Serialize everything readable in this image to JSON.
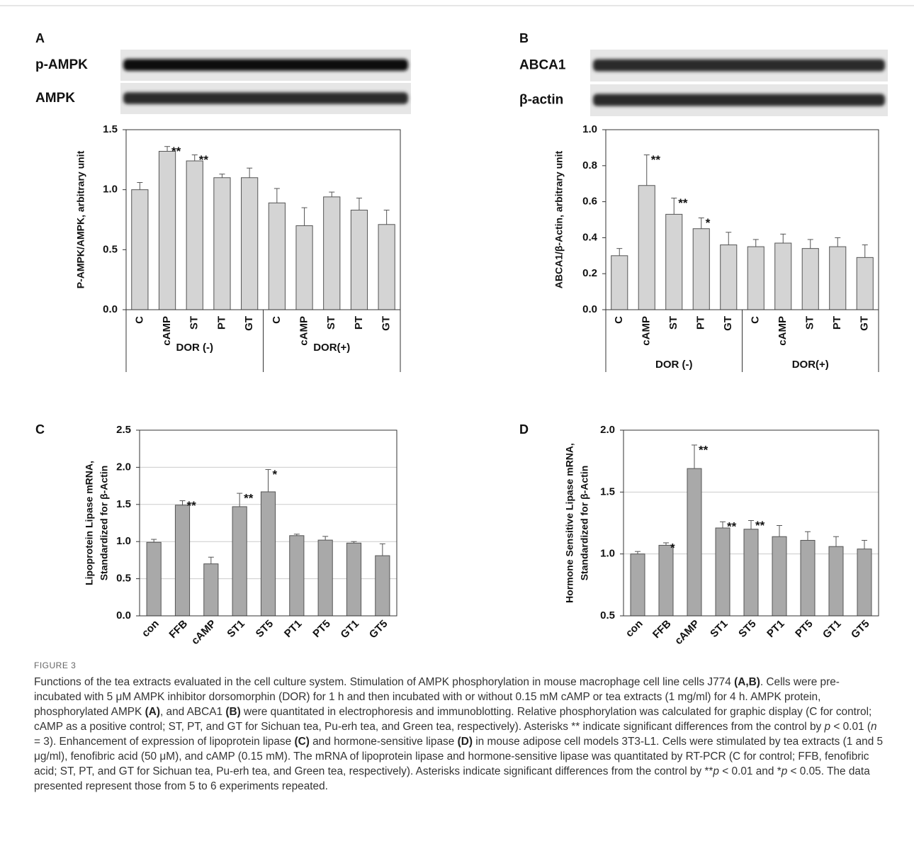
{
  "figure_label": "FIGURE 3",
  "caption": {
    "runs": [
      {
        "text": "Functions of the tea extracts evaluated in the cell culture system. Stimulation of AMPK phosphorylation in mouse macrophage cell line cells J774 "
      },
      {
        "text": "(A,B)",
        "bold": true
      },
      {
        "text": ". Cells were pre-incubated with 5 μM AMPK inhibitor dorsomorphin (DOR) for 1 h and then incubated with or without 0.15 mM cAMP or tea extracts (1 mg/ml) for 4 h. AMPK protein, phosphorylated AMPK "
      },
      {
        "text": "(A)",
        "bold": true
      },
      {
        "text": ", and ABCA1 "
      },
      {
        "text": "(B)",
        "bold": true
      },
      {
        "text": " were quantitated in electrophoresis and immunoblotting. Relative phosphorylation was calculated for graphic display (C for control; cAMP as a positive control; ST, PT, and GT for Sichuan tea, Pu-erh tea, and Green tea, respectively). Asterisks ** indicate significant differences from the control by "
      },
      {
        "text": "p",
        "italic": true
      },
      {
        "text": " < 0.01 ("
      },
      {
        "text": "n",
        "italic": true
      },
      {
        "text": " = 3). Enhancement of expression of lipoprotein lipase "
      },
      {
        "text": "(C)",
        "bold": true
      },
      {
        "text": " and hormone-sensitive lipase "
      },
      {
        "text": "(D)",
        "bold": true
      },
      {
        "text": " in mouse adipose cell models 3T3-L1. Cells were stimulated by tea extracts (1 and 5 μg/ml), fenofibric acid (50 μM), and cAMP (0.15 mM). The mRNA of lipoprotein lipase and hormone-sensitive lipase was quantitated by RT-PCR (C for control; FFB, fenofibric acid; ST, PT, and GT for Sichuan tea, Pu-erh tea, and Green tea, respectively). Asterisks indicate significant differences from the control by **"
      },
      {
        "text": "p",
        "italic": true
      },
      {
        "text": " < 0.01 and *"
      },
      {
        "text": "p",
        "italic": true
      },
      {
        "text": " < 0.05. The data presented represent those from 5 to 6 experiments repeated."
      }
    ]
  },
  "chart_data": [
    {
      "type": "bar",
      "panel": "A",
      "blots": [
        "p-AMPK",
        "AMPK"
      ],
      "ylabel": [
        "P-AMPK/AMPK, arbitrary unit"
      ],
      "categories": [
        "C",
        "cAMP",
        "ST",
        "PT",
        "GT",
        "C",
        "cAMP",
        "ST",
        "PT",
        "GT"
      ],
      "groups": [
        "DOR (-)",
        "DOR(+)"
      ],
      "values": [
        1.0,
        1.32,
        1.24,
        1.1,
        1.1,
        0.89,
        0.7,
        0.94,
        0.83,
        0.71
      ],
      "errors": [
        0.06,
        0.04,
        0.05,
        0.03,
        0.08,
        0.12,
        0.15,
        0.04,
        0.1,
        0.12
      ],
      "significance": [
        null,
        "**",
        "**",
        null,
        null,
        null,
        null,
        null,
        null,
        null
      ],
      "color": "#d4d4d4",
      "grid": false,
      "xtick_rotation": 90,
      "ylim": [
        0,
        1.5
      ],
      "yticks": [
        {
          "value": 0,
          "label": "0.0"
        },
        {
          "value": 0.5,
          "label": "0.5"
        },
        {
          "value": 1,
          "label": "1.0"
        },
        {
          "value": 1.5,
          "label": "1.5"
        }
      ]
    },
    {
      "type": "bar",
      "panel": "B",
      "blots": [
        "ABCA1",
        "β-actin"
      ],
      "ylabel": [
        "ABCA1/β-Actin, arbitrary unit"
      ],
      "categories": [
        "C",
        "cAMP",
        "ST",
        "PT",
        "GT",
        "C",
        "cAMP",
        "ST",
        "PT",
        "GT"
      ],
      "groups": [
        "DOR (-)",
        "DOR(+)"
      ],
      "values": [
        0.3,
        0.69,
        0.53,
        0.45,
        0.36,
        0.35,
        0.37,
        0.34,
        0.35,
        0.29
      ],
      "errors": [
        0.04,
        0.17,
        0.09,
        0.06,
        0.07,
        0.04,
        0.05,
        0.05,
        0.05,
        0.07
      ],
      "significance": [
        null,
        "**",
        "**",
        "*",
        null,
        null,
        null,
        null,
        null,
        null
      ],
      "color": "#d4d4d4",
      "grid": false,
      "xtick_rotation": 90,
      "ylim": [
        0,
        1.0
      ],
      "yticks": [
        {
          "value": 0,
          "label": "0.0"
        },
        {
          "value": 0.2,
          "label": "0.2"
        },
        {
          "value": 0.4,
          "label": "0.4"
        },
        {
          "value": 0.6,
          "label": "0.6"
        },
        {
          "value": 0.8,
          "label": "0.8"
        },
        {
          "value": 1,
          "label": "1.0"
        }
      ]
    },
    {
      "type": "bar",
      "panel": "C",
      "ylabel": [
        "Lipoprotein Lipase mRNA,",
        "Standardized for β-Actin"
      ],
      "categories": [
        "con",
        "FFB",
        "cAMP",
        "ST1",
        "ST5",
        "PT1",
        "PT5",
        "GT1",
        "GT5"
      ],
      "values": [
        0.99,
        1.49,
        0.7,
        1.47,
        1.67,
        1.08,
        1.02,
        0.98,
        0.81
      ],
      "errors": [
        0.04,
        0.06,
        0.09,
        0.18,
        0.3,
        0.02,
        0.05,
        0.02,
        0.16
      ],
      "significance": [
        null,
        "**",
        null,
        "**",
        "*",
        null,
        null,
        null,
        null
      ],
      "color": "#a9a9a9",
      "grid": true,
      "xtick_rotation": 45,
      "ylim": [
        0,
        2.5
      ],
      "yticks": [
        {
          "value": 0,
          "label": "0.0"
        },
        {
          "value": 0.5,
          "label": "0.5"
        },
        {
          "value": 1,
          "label": "1.0"
        },
        {
          "value": 1.5,
          "label": "1.5"
        },
        {
          "value": 2,
          "label": "2.0"
        },
        {
          "value": 2.5,
          "label": "2.5"
        }
      ]
    },
    {
      "type": "bar",
      "panel": "D",
      "ylabel": [
        "Hormone Sensitive Lipase mRNA,",
        "Standardized for β-Actin"
      ],
      "categories": [
        "con",
        "FFB",
        "cAMP",
        "ST1",
        "ST5",
        "PT1",
        "PT5",
        "GT1",
        "GT5"
      ],
      "values": [
        1.0,
        1.07,
        1.69,
        1.21,
        1.2,
        1.14,
        1.11,
        1.06,
        1.04
      ],
      "errors": [
        0.02,
        0.02,
        0.19,
        0.05,
        0.07,
        0.09,
        0.07,
        0.08,
        0.07
      ],
      "significance": [
        null,
        "*",
        "**",
        "**",
        "**",
        null,
        null,
        null,
        null
      ],
      "color": "#a9a9a9",
      "grid": true,
      "xtick_rotation": 45,
      "ylim": [
        0.5,
        2.0
      ],
      "yticks": [
        {
          "value": 0.5,
          "label": "0.5"
        },
        {
          "value": 1,
          "label": "1.0"
        },
        {
          "value": 1.5,
          "label": "1.5"
        },
        {
          "value": 2,
          "label": "2.0"
        }
      ]
    }
  ]
}
